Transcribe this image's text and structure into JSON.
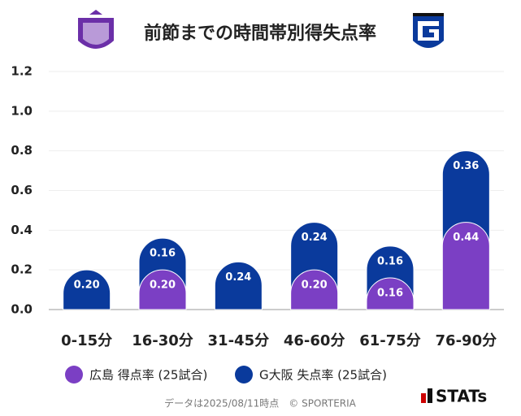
{
  "chart_data": {
    "type": "stacked-bar",
    "title": "前節までの時間帯別得失点率",
    "categories": [
      "0-15分",
      "16-30分",
      "31-45分",
      "46-60分",
      "61-75分",
      "76-90分"
    ],
    "series": [
      {
        "name": "広島 得点率 (25試合)",
        "color": "#7b3fc4",
        "values": [
          0,
          0.2,
          0,
          0.2,
          0.16,
          0.44
        ],
        "value_labels": [
          null,
          "0.20",
          null,
          "0.20",
          "0.16",
          "0.44"
        ]
      },
      {
        "name": "G大阪 失点率 (25試合)",
        "color": "#0a3a9c",
        "values": [
          0.2,
          0.16,
          0.24,
          0.24,
          0.16,
          0.36
        ],
        "value_labels": [
          "0.20",
          "0.16",
          "0.24",
          "0.24",
          "0.16",
          "0.36"
        ]
      }
    ],
    "ylim": [
      0,
      1.2
    ],
    "yticks": [
      {
        "value": 0,
        "label": "0.0"
      },
      0.2,
      0.4,
      0.6,
      0.8,
      {
        "value": 1,
        "label": "1.0"
      },
      1.2
    ],
    "grid": true,
    "source": "データは2025/08/11時点　© SPORTERIA",
    "brand": "STATs"
  }
}
